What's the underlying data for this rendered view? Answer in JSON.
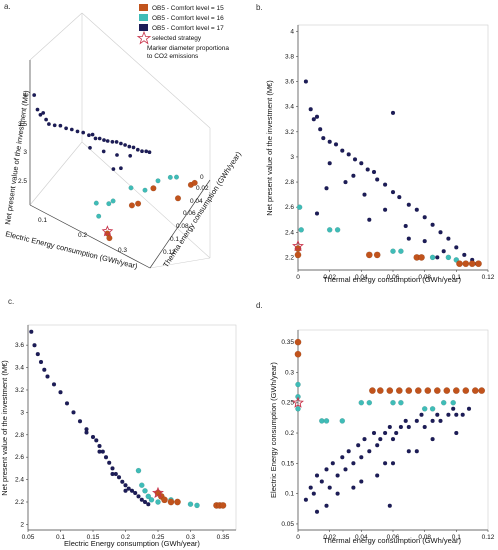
{
  "colors": {
    "comfort15": "#c1531c",
    "comfort16": "#3fbcb7",
    "comfort17": "#1c1c58",
    "selected": "#c8334a"
  },
  "legend": {
    "items": [
      {
        "label": "OB5 - Comfort level = 15",
        "color": "#c1531c"
      },
      {
        "label": "OB5 - Comfort level = 16",
        "color": "#3fbcb7"
      },
      {
        "label": "OB5 - Comfort level = 17",
        "color": "#1c1c58"
      }
    ],
    "selected_label": "selected strategy",
    "note_line1": "Marker diameter proportiona",
    "note_line2": "to CO2 emissions"
  },
  "chart_data": [
    {
      "panel": "a.",
      "type": "scatter",
      "projection": "3d",
      "xlabel": "Electric Energy consumption (GWh/year)",
      "ylabel": "Therma energy consumption (GWh/year)",
      "zlabel": "Net present value of the investment (M€)",
      "x_ticks": [
        "0.1",
        "0.2",
        "0.3"
      ],
      "y_ticks": [
        "0",
        "0.02",
        "0.04",
        "0.06",
        "0.08",
        "0.1",
        "0.12"
      ],
      "z_ticks": [
        "2.5",
        "3",
        "3.5",
        "4"
      ],
      "xlim": [
        0.05,
        0.36
      ],
      "ylim": [
        0,
        0.12
      ],
      "zlim": [
        2.1,
        4.2
      ],
      "selected": {
        "x": 0.25,
        "y": 0,
        "z": 2.3
      }
    },
    {
      "panel": "b.",
      "type": "scatter",
      "xlabel": "Thermal energy consumption (GWh/year)",
      "ylabel": "Net present value of the investment (M€)",
      "x_ticks": [
        "0",
        "0.02",
        "0.04",
        "0.06",
        "0.08",
        "0.1",
        "0.12"
      ],
      "y_ticks": [
        "2.2",
        "2.4",
        "2.6",
        "2.8",
        "3",
        "3.2",
        "3.4",
        "3.6",
        "3.8",
        "4"
      ],
      "xlim": [
        0,
        0.12
      ],
      "ylim": [
        2.1,
        4.05
      ],
      "grid": false,
      "selected": {
        "x": 0,
        "y": 2.29
      },
      "series": [
        {
          "name": "OB5 - Comfort level = 17",
          "points": [
            [
              0.005,
              3.6
            ],
            [
              0.008,
              3.38
            ],
            [
              0.01,
              3.3
            ],
            [
              0.012,
              3.32
            ],
            [
              0.014,
              3.22
            ],
            [
              0.016,
              3.15
            ],
            [
              0.02,
              3.12
            ],
            [
              0.024,
              3.1
            ],
            [
              0.028,
              3.05
            ],
            [
              0.032,
              3.02
            ],
            [
              0.036,
              2.98
            ],
            [
              0.04,
              2.95
            ],
            [
              0.044,
              2.9
            ],
            [
              0.048,
              2.88
            ],
            [
              0.05,
              2.82
            ],
            [
              0.055,
              2.78
            ],
            [
              0.06,
              2.72
            ],
            [
              0.064,
              2.68
            ],
            [
              0.07,
              2.62
            ],
            [
              0.075,
              2.58
            ],
            [
              0.08,
              2.52
            ],
            [
              0.085,
              2.46
            ],
            [
              0.09,
              2.4
            ],
            [
              0.095,
              2.35
            ],
            [
              0.1,
              2.28
            ],
            [
              0.105,
              2.22
            ],
            [
              0.11,
              2.18
            ],
            [
              0.113,
              2.15
            ],
            [
              0.03,
              2.8
            ],
            [
              0.042,
              2.7
            ],
            [
              0.055,
              2.58
            ],
            [
              0.068,
              2.45
            ],
            [
              0.08,
              2.33
            ],
            [
              0.092,
              2.25
            ],
            [
              0.02,
              2.95
            ],
            [
              0.035,
              2.85
            ],
            [
              0.06,
              3.35
            ],
            [
              0.012,
              2.55
            ],
            [
              0.018,
              2.75
            ],
            [
              0.045,
              2.5
            ],
            [
              0.07,
              2.35
            ],
            [
              0.088,
              2.2
            ]
          ]
        },
        {
          "name": "OB5 - Comfort level = 16",
          "points": [
            [
              0.001,
              2.6
            ],
            [
              0.002,
              2.42
            ],
            [
              0.02,
              2.42
            ],
            [
              0.025,
              2.42
            ],
            [
              0.06,
              2.25
            ],
            [
              0.065,
              2.25
            ],
            [
              0.085,
              2.2
            ],
            [
              0.095,
              2.2
            ],
            [
              0.1,
              2.18
            ]
          ]
        },
        {
          "name": "OB5 - Comfort level = 15",
          "points": [
            [
              0.0,
              2.27
            ],
            [
              0.0,
              2.22
            ],
            [
              0.045,
              2.22
            ],
            [
              0.05,
              2.22
            ],
            [
              0.075,
              2.2
            ],
            [
              0.078,
              2.2
            ],
            [
              0.102,
              2.15
            ],
            [
              0.106,
              2.15
            ],
            [
              0.11,
              2.15
            ],
            [
              0.114,
              2.15
            ]
          ]
        }
      ]
    },
    {
      "panel": "c.",
      "type": "scatter",
      "xlabel": "Electric Energy consumption (GWh/year)",
      "ylabel": "Net present value of the investment (M€)",
      "x_ticks": [
        "0.05",
        "0.1",
        "0.15",
        "0.2",
        "0.25",
        "0.3",
        "0.35"
      ],
      "y_ticks": [
        "2",
        "2.2",
        "2.4",
        "2.6",
        "2.8",
        "3",
        "3.2",
        "3.4",
        "3.6"
      ],
      "xlim": [
        0.05,
        0.37
      ],
      "ylim": [
        1.95,
        3.78
      ],
      "grid": false,
      "selected": {
        "x": 0.25,
        "y": 2.28
      },
      "series": [
        {
          "name": "OB5 - Comfort level = 17",
          "points": [
            [
              0.055,
              3.72
            ],
            [
              0.06,
              3.6
            ],
            [
              0.065,
              3.52
            ],
            [
              0.07,
              3.45
            ],
            [
              0.075,
              3.38
            ],
            [
              0.08,
              3.32
            ],
            [
              0.09,
              3.25
            ],
            [
              0.1,
              3.18
            ],
            [
              0.11,
              3.08
            ],
            [
              0.12,
              3.0
            ],
            [
              0.13,
              2.92
            ],
            [
              0.14,
              2.85
            ],
            [
              0.15,
              2.78
            ],
            [
              0.155,
              2.75
            ],
            [
              0.16,
              2.7
            ],
            [
              0.165,
              2.65
            ],
            [
              0.17,
              2.6
            ],
            [
              0.175,
              2.55
            ],
            [
              0.18,
              2.5
            ],
            [
              0.185,
              2.45
            ],
            [
              0.19,
              2.42
            ],
            [
              0.195,
              2.38
            ],
            [
              0.2,
              2.35
            ],
            [
              0.205,
              2.32
            ],
            [
              0.21,
              2.3
            ],
            [
              0.215,
              2.28
            ],
            [
              0.22,
              2.25
            ],
            [
              0.225,
              2.22
            ],
            [
              0.23,
              2.2
            ],
            [
              0.235,
              2.18
            ],
            [
              0.14,
              2.82
            ],
            [
              0.16,
              2.65
            ],
            [
              0.18,
              2.45
            ],
            [
              0.2,
              2.3
            ]
          ]
        },
        {
          "name": "OB5 - Comfort level = 16",
          "points": [
            [
              0.22,
              2.48
            ],
            [
              0.225,
              2.35
            ],
            [
              0.23,
              2.3
            ],
            [
              0.235,
              2.25
            ],
            [
              0.24,
              2.22
            ],
            [
              0.27,
              2.22
            ],
            [
              0.28,
              2.2
            ],
            [
              0.3,
              2.18
            ],
            [
              0.31,
              2.17
            ],
            [
              0.25,
              2.2
            ]
          ]
        },
        {
          "name": "OB5 - Comfort level = 15",
          "points": [
            [
              0.25,
              2.28
            ],
            [
              0.255,
              2.25
            ],
            [
              0.26,
              2.22
            ],
            [
              0.27,
              2.2
            ],
            [
              0.28,
              2.2
            ],
            [
              0.34,
              2.17
            ],
            [
              0.345,
              2.17
            ],
            [
              0.35,
              2.17
            ]
          ]
        }
      ]
    },
    {
      "panel": "d.",
      "type": "scatter",
      "xlabel": "Thermal energy consumption (GWh/year)",
      "ylabel": "Electric Energy consumption (GWh/year)",
      "x_ticks": [
        "0",
        "0.02",
        "0.04",
        "0.06",
        "0.08",
        "0.1",
        "0.12"
      ],
      "y_ticks": [
        "0.05",
        "0.1",
        "0.15",
        "0.2",
        "0.25",
        "0.3",
        "0.35"
      ],
      "xlim": [
        0,
        0.12
      ],
      "ylim": [
        0.04,
        0.37
      ],
      "grid": false,
      "selected": {
        "x": 0,
        "y": 0.25
      },
      "series": [
        {
          "name": "OB5 - Comfort level = 17",
          "points": [
            [
              0.005,
              0.09
            ],
            [
              0.008,
              0.11
            ],
            [
              0.01,
              0.1
            ],
            [
              0.012,
              0.13
            ],
            [
              0.015,
              0.12
            ],
            [
              0.018,
              0.14
            ],
            [
              0.02,
              0.11
            ],
            [
              0.022,
              0.15
            ],
            [
              0.025,
              0.13
            ],
            [
              0.028,
              0.16
            ],
            [
              0.03,
              0.14
            ],
            [
              0.032,
              0.17
            ],
            [
              0.035,
              0.15
            ],
            [
              0.038,
              0.18
            ],
            [
              0.04,
              0.16
            ],
            [
              0.042,
              0.19
            ],
            [
              0.045,
              0.17
            ],
            [
              0.048,
              0.2
            ],
            [
              0.05,
              0.18
            ],
            [
              0.052,
              0.19
            ],
            [
              0.055,
              0.2
            ],
            [
              0.058,
              0.21
            ],
            [
              0.06,
              0.19
            ],
            [
              0.062,
              0.2
            ],
            [
              0.065,
              0.21
            ],
            [
              0.068,
              0.22
            ],
            [
              0.07,
              0.21
            ],
            [
              0.075,
              0.22
            ],
            [
              0.078,
              0.23
            ],
            [
              0.08,
              0.21
            ],
            [
              0.085,
              0.22
            ],
            [
              0.088,
              0.23
            ],
            [
              0.09,
              0.22
            ],
            [
              0.095,
              0.23
            ],
            [
              0.098,
              0.24
            ],
            [
              0.1,
              0.23
            ],
            [
              0.104,
              0.23
            ],
            [
              0.108,
              0.24
            ],
            [
              0.025,
              0.1
            ],
            [
              0.04,
              0.12
            ],
            [
              0.055,
              0.15
            ],
            [
              0.07,
              0.17
            ],
            [
              0.085,
              0.19
            ],
            [
              0.1,
              0.2
            ],
            [
              0.035,
              0.11
            ],
            [
              0.06,
              0.15
            ],
            [
              0.075,
              0.17
            ],
            [
              0.018,
              0.08
            ],
            [
              0.05,
              0.13
            ],
            [
              0.012,
              0.07
            ],
            [
              0.058,
              0.08
            ]
          ]
        },
        {
          "name": "OB5 - Comfort level = 16",
          "points": [
            [
              0.0,
              0.28
            ],
            [
              0.0,
              0.26
            ],
            [
              0.0,
              0.24
            ],
            [
              0.015,
              0.22
            ],
            [
              0.018,
              0.22
            ],
            [
              0.04,
              0.25
            ],
            [
              0.045,
              0.25
            ],
            [
              0.06,
              0.25
            ],
            [
              0.065,
              0.25
            ],
            [
              0.08,
              0.24
            ],
            [
              0.085,
              0.24
            ],
            [
              0.092,
              0.25
            ],
            [
              0.098,
              0.25
            ],
            [
              0.028,
              0.22
            ]
          ]
        },
        {
          "name": "OB5 - Comfort level = 15",
          "points": [
            [
              0.0,
              0.35
            ],
            [
              0.0,
              0.33
            ],
            [
              0.047,
              0.27
            ],
            [
              0.052,
              0.27
            ],
            [
              0.058,
              0.27
            ],
            [
              0.064,
              0.27
            ],
            [
              0.07,
              0.27
            ],
            [
              0.076,
              0.27
            ],
            [
              0.082,
              0.27
            ],
            [
              0.088,
              0.27
            ],
            [
              0.094,
              0.27
            ],
            [
              0.1,
              0.27
            ],
            [
              0.106,
              0.27
            ],
            [
              0.112,
              0.27
            ],
            [
              0.116,
              0.27
            ]
          ]
        }
      ]
    }
  ]
}
